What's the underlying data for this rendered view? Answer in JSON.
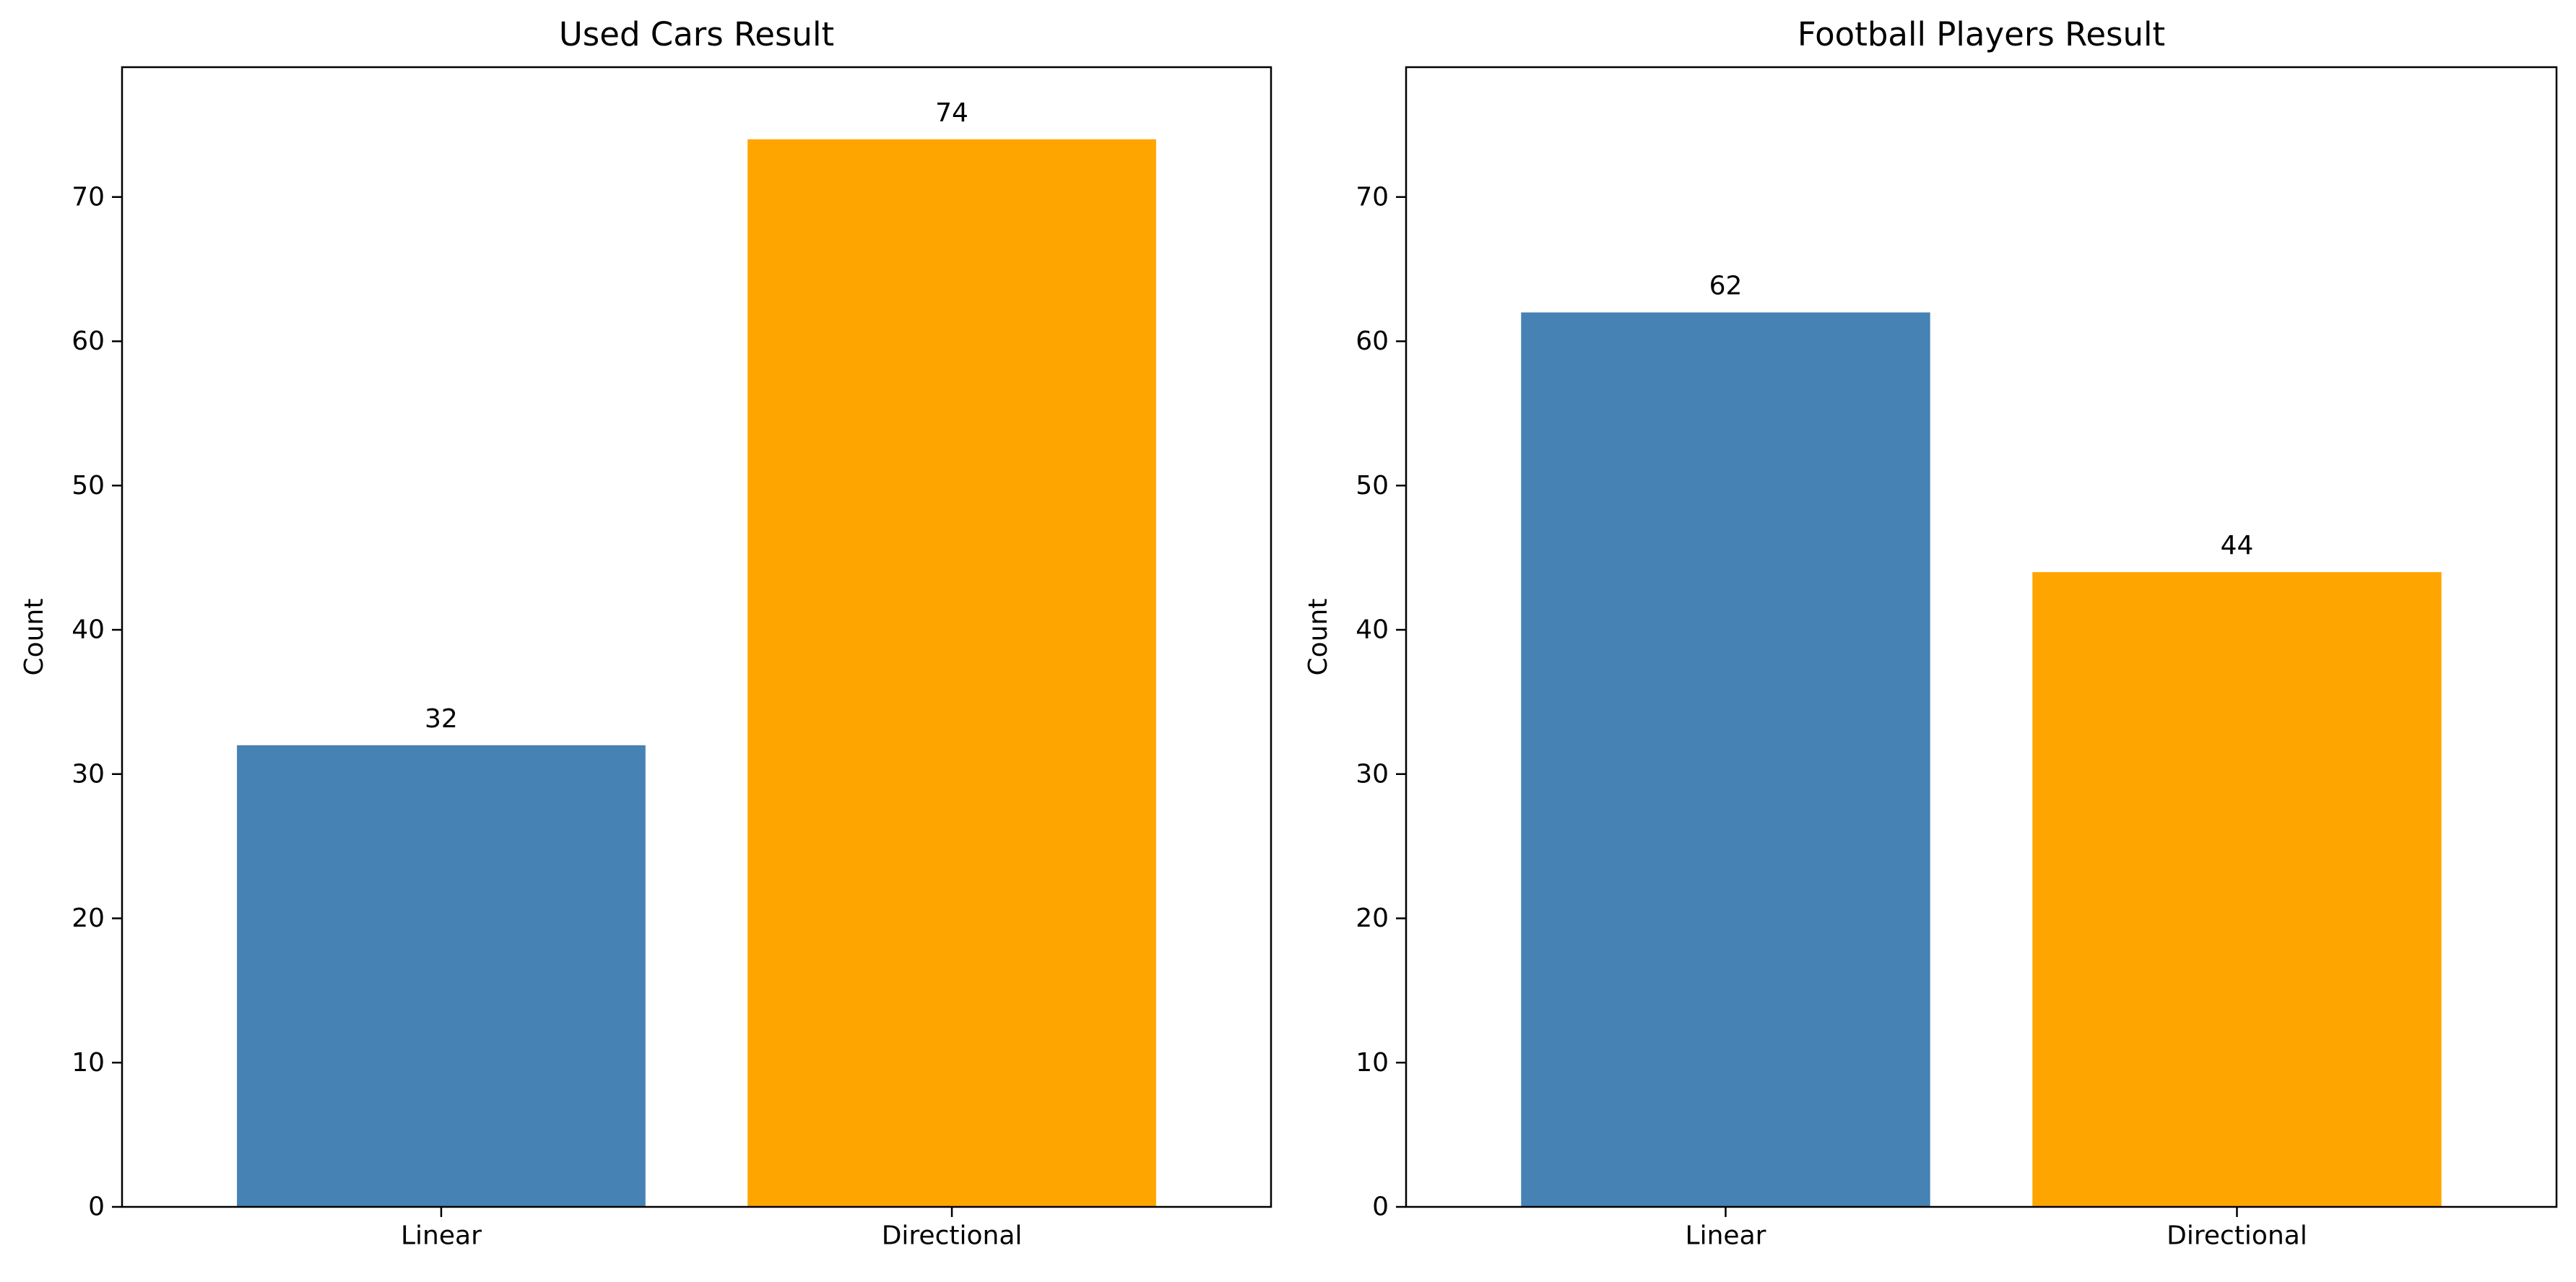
{
  "chart_data": [
    {
      "type": "bar",
      "title": "Used Cars Result",
      "xlabel": "",
      "ylabel": "Count",
      "categories": [
        "Linear",
        "Directional"
      ],
      "values": [
        32,
        74
      ],
      "data_labels": [
        "32",
        "74"
      ],
      "colors": [
        "#4682b4",
        "#ffa500"
      ],
      "ylim": [
        0,
        79
      ],
      "yticks": [
        0,
        10,
        20,
        30,
        40,
        50,
        60,
        70
      ],
      "grid": false,
      "legend": "none"
    },
    {
      "type": "bar",
      "title": "Football Players Result",
      "xlabel": "",
      "ylabel": "Count",
      "categories": [
        "Linear",
        "Directional"
      ],
      "values": [
        62,
        44
      ],
      "data_labels": [
        "62",
        "44"
      ],
      "colors": [
        "#4682b4",
        "#ffa500"
      ],
      "ylim": [
        0,
        79
      ],
      "yticks": [
        0,
        10,
        20,
        30,
        40,
        50,
        60,
        70
      ],
      "grid": false,
      "legend": "none"
    }
  ]
}
